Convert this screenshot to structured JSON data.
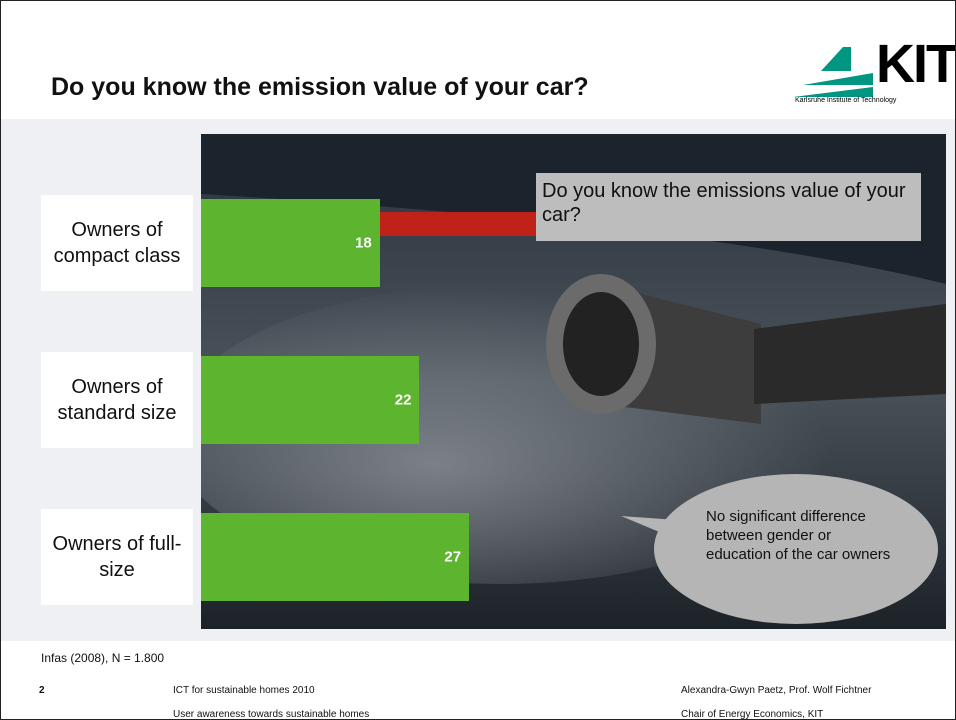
{
  "chart_data": {
    "type": "bar",
    "orientation": "horizontal",
    "title": "Do you know the emission value of your car?",
    "categories": [
      "Owners of compact class",
      "Owners of standard size",
      "Owners of full-size"
    ],
    "values": [
      18,
      22,
      27
    ],
    "color": "#5db52f",
    "annotations": [
      "Do you know the emissions value of your car?",
      "No significant difference between gender or education of the car owners"
    ],
    "source": "Infas (2008), N = 1.800"
  },
  "logo": {
    "mark": "KIT",
    "subtitle": "Karlsruhe Institute of Technology"
  },
  "footer": {
    "page": "2",
    "left": [
      "ICT for sustainable homes 2010",
      "User awareness towards sustainable homes"
    ],
    "right": [
      "Alexandra-Gwyn Paetz, Prof. Wolf Fichtner",
      "Chair of Energy Economics, KIT"
    ]
  }
}
